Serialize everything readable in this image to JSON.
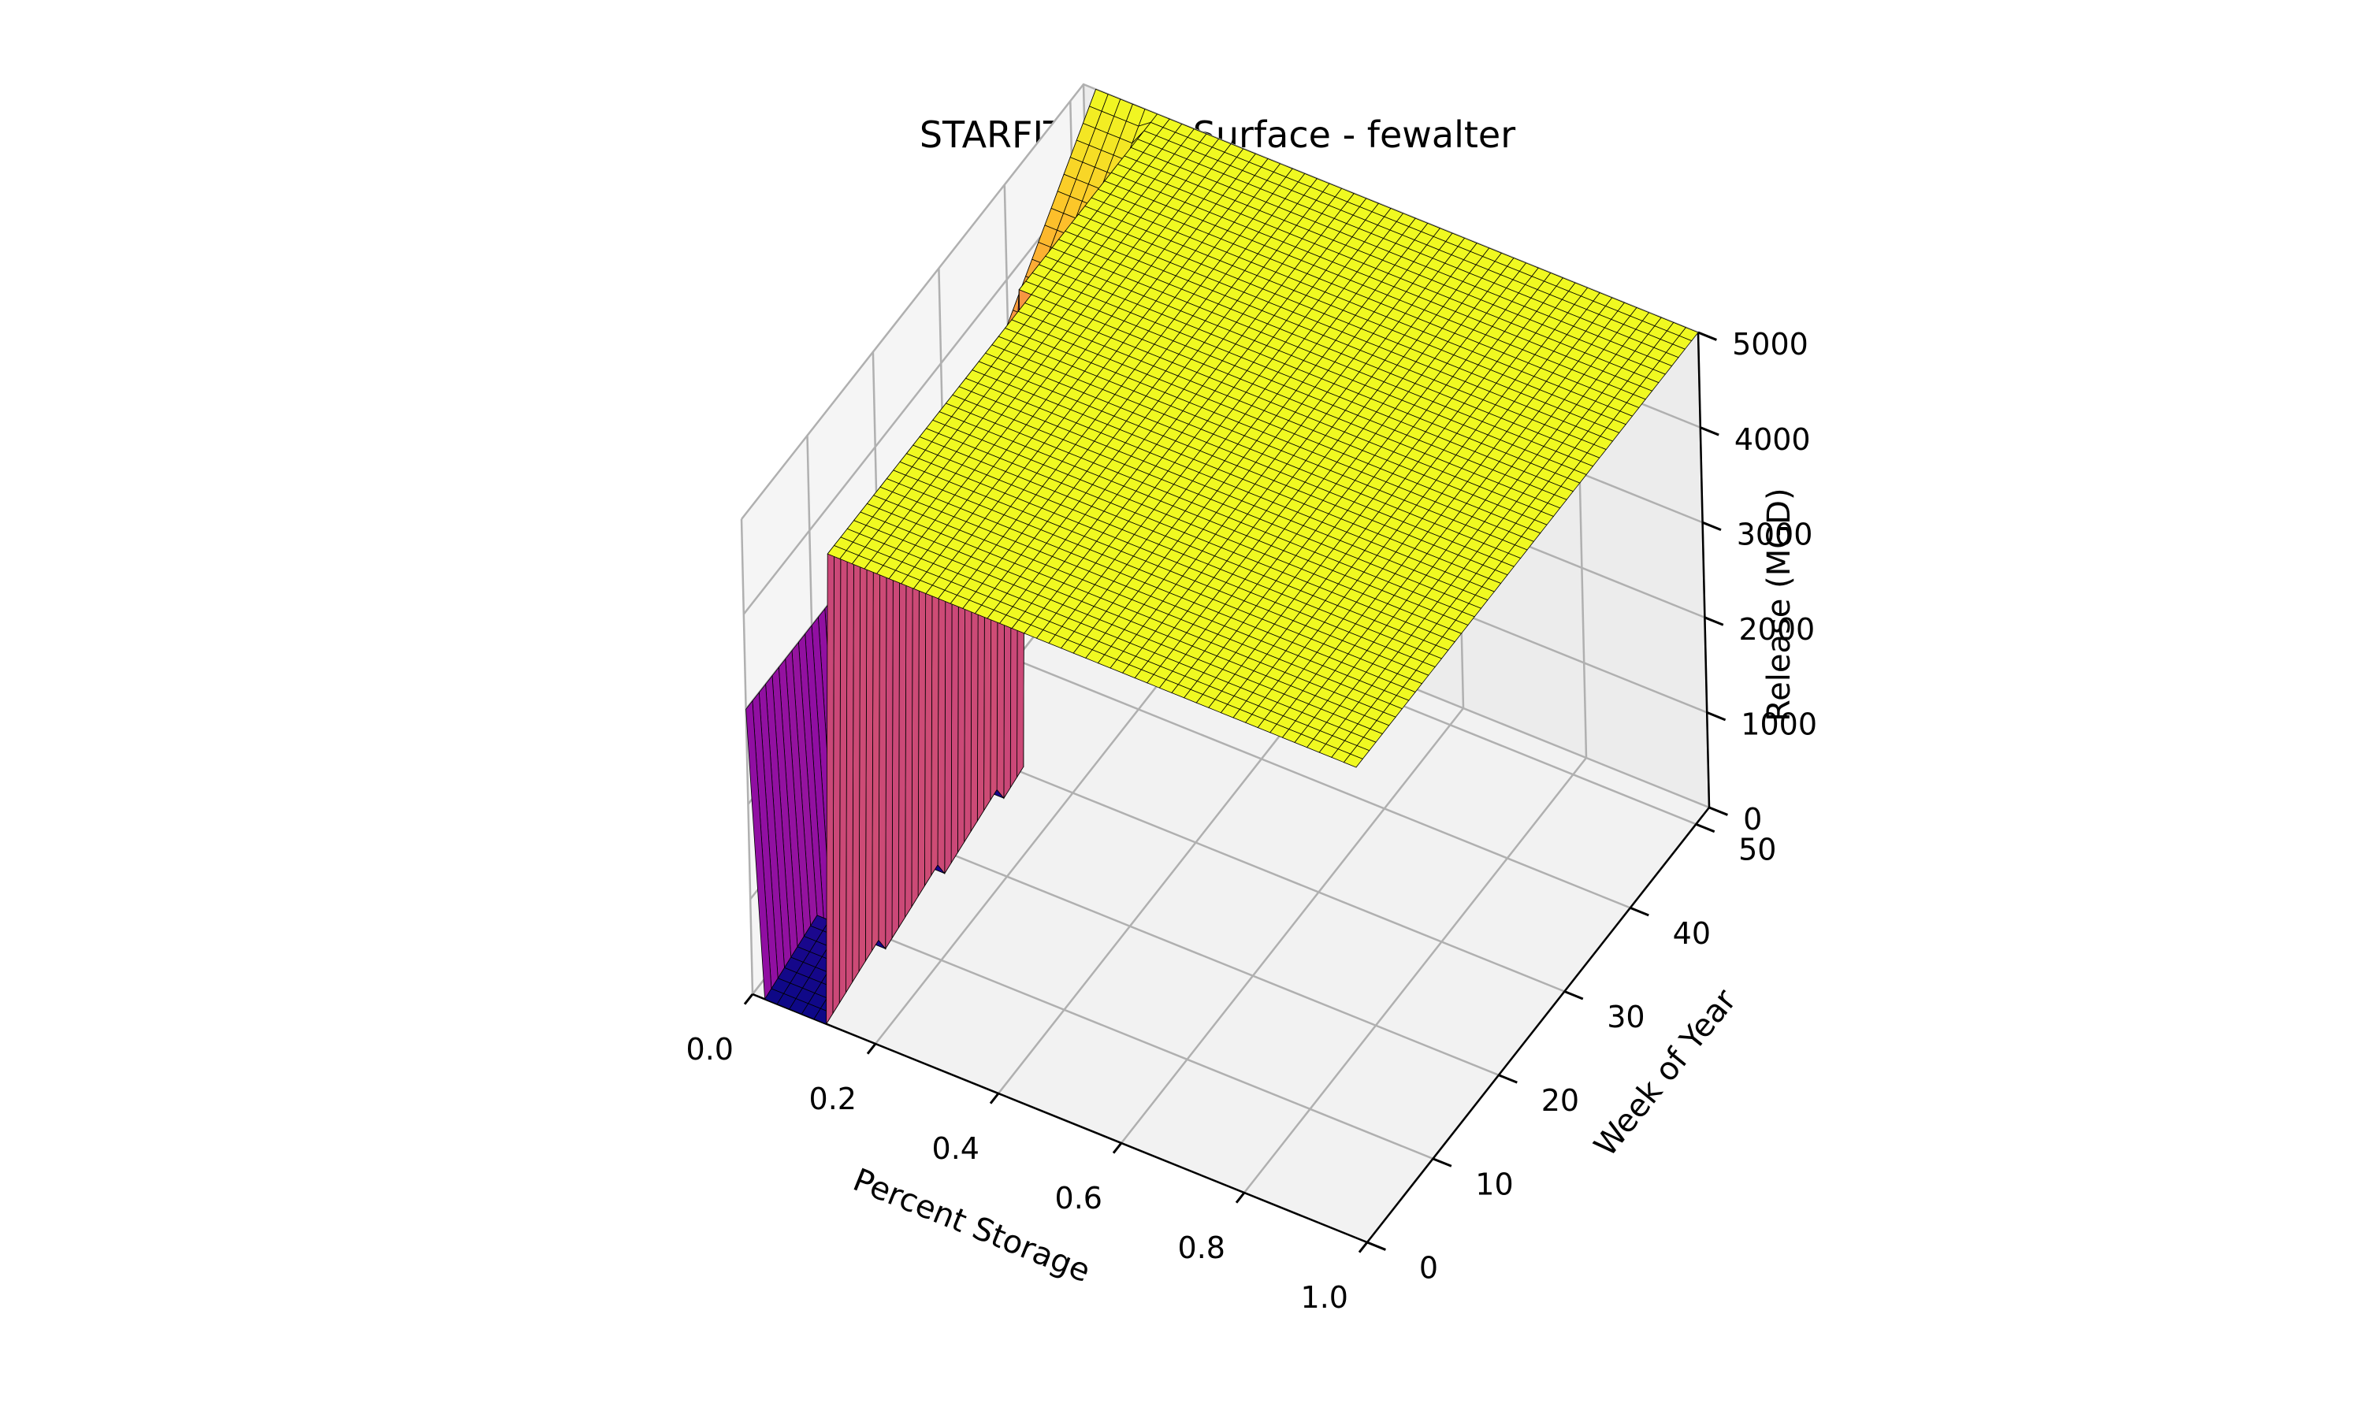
{
  "chart_data": {
    "type": "surface",
    "title": "STARFIT Policy Surface - fewalter",
    "xlabel": "Percent Storage",
    "ylabel": "Week of Year",
    "zlabel": "Release (MGD)",
    "xlim": [
      0,
      1
    ],
    "ylim": [
      0,
      52
    ],
    "zlim": [
      0,
      5000
    ],
    "x_ticks": [
      0.0,
      0.2,
      0.4,
      0.6,
      0.8,
      1.0
    ],
    "x_tick_labels": [
      "0.0",
      "0.2",
      "0.4",
      "0.6",
      "0.8",
      "1.0"
    ],
    "y_ticks": [
      0,
      10,
      20,
      30,
      40,
      50
    ],
    "y_tick_labels": [
      "0",
      "10",
      "20",
      "30",
      "40",
      "50"
    ],
    "z_ticks": [
      0,
      1000,
      2000,
      3000,
      4000,
      5000
    ],
    "z_tick_labels": [
      "0",
      "1000",
      "2000",
      "3000",
      "4000",
      "5000"
    ],
    "colormap": "plasma",
    "grid": true,
    "surface": {
      "x_range": [
        0,
        1
      ],
      "y_range": [
        0,
        52
      ],
      "x_steps": 50,
      "y_steps": 52,
      "max_release": 5000,
      "min_release": 0,
      "low_release_band": {
        "storage_range": [
          0.02,
          0.12
        ],
        "weeks_range": [
          0,
          30
        ],
        "release_range": [
          0,
          3000
        ]
      },
      "transition_band": {
        "storage_range": [
          0.02,
          0.1
        ],
        "weeks_range": [
          30,
          52
        ],
        "release_range": [
          3000,
          5000
        ]
      },
      "note_colors": {
        "min": "#0d0887",
        "mid": "#cc4778",
        "max": "#f0f921"
      }
    }
  }
}
